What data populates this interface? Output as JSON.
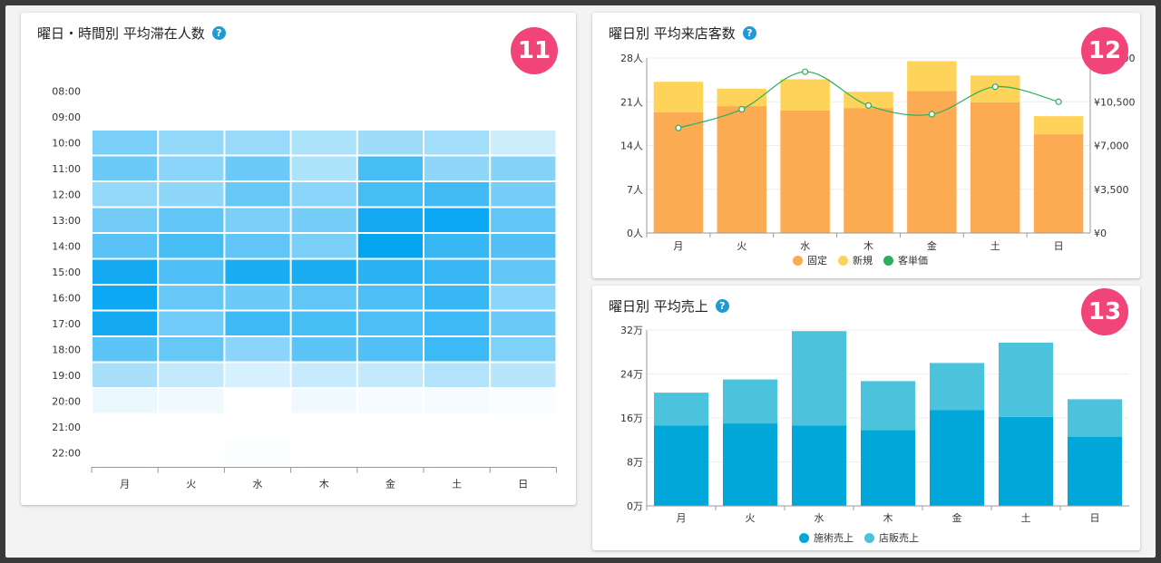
{
  "colors": {
    "help": "#1e9bd7",
    "badge": "#f1457a",
    "fixed": "#fdab53",
    "new": "#fdd35a",
    "unit_price": "#2dae5c",
    "treatment": "#00a7d8",
    "retail": "#4cc3dc",
    "heat_base": "#00a3f2"
  },
  "cards": {
    "heatmap": {
      "title": "曜日・時間別 平均滞在人数",
      "help": "?",
      "badge": "11"
    },
    "visitors": {
      "title": "曜日別 平均来店客数",
      "help": "?",
      "badge": "12"
    },
    "sales": {
      "title": "曜日別 平均売上",
      "help": "?",
      "badge": "13"
    }
  },
  "chart_data": [
    {
      "id": "heatmap",
      "type": "heatmap",
      "x": [
        "月",
        "火",
        "水",
        "木",
        "金",
        "土",
        "日"
      ],
      "y": [
        "08:00",
        "09:00",
        "10:00",
        "11:00",
        "12:00",
        "13:00",
        "14:00",
        "15:00",
        "16:00",
        "17:00",
        "18:00",
        "19:00",
        "20:00",
        "21:00",
        "22:00"
      ],
      "values": [
        [
          0,
          0,
          0,
          0,
          0,
          0,
          0
        ],
        [
          0,
          0,
          0,
          0,
          0,
          0,
          0
        ],
        [
          0.52,
          0.42,
          0.4,
          0.32,
          0.38,
          0.36,
          0.2
        ],
        [
          0.58,
          0.46,
          0.58,
          0.32,
          0.72,
          0.44,
          0.48
        ],
        [
          0.42,
          0.44,
          0.6,
          0.46,
          0.72,
          0.74,
          0.54
        ],
        [
          0.55,
          0.62,
          0.52,
          0.54,
          0.92,
          0.95,
          0.62
        ],
        [
          0.65,
          0.72,
          0.62,
          0.52,
          0.98,
          0.78,
          0.68
        ],
        [
          0.92,
          0.7,
          0.9,
          0.9,
          0.84,
          0.78,
          0.62
        ],
        [
          0.95,
          0.6,
          0.58,
          0.62,
          0.7,
          0.78,
          0.46
        ],
        [
          0.92,
          0.56,
          0.76,
          0.72,
          0.7,
          0.76,
          0.58
        ],
        [
          0.64,
          0.6,
          0.46,
          0.64,
          0.68,
          0.76,
          0.5
        ],
        [
          0.34,
          0.24,
          0.16,
          0.22,
          0.24,
          0.3,
          0.28
        ],
        [
          0.08,
          0.06,
          0,
          0.06,
          0.04,
          0.04,
          0.02
        ],
        [
          0,
          0,
          0,
          0,
          0,
          0,
          0
        ],
        [
          0,
          0,
          0.015,
          0,
          0,
          0,
          0
        ]
      ]
    },
    {
      "id": "visitors",
      "type": "bar",
      "stacked": true,
      "categories": [
        "月",
        "火",
        "水",
        "木",
        "金",
        "土",
        "日"
      ],
      "series": [
        {
          "name": "固定",
          "values": [
            19.3,
            20.3,
            19.6,
            20.0,
            22.7,
            20.9,
            15.8
          ]
        },
        {
          "name": "新規",
          "values": [
            4.9,
            2.8,
            5.0,
            2.6,
            4.8,
            4.3,
            2.9
          ]
        }
      ],
      "line_series": {
        "name": "客単価",
        "values": [
          8400,
          9900,
          12900,
          10200,
          9500,
          11700,
          10500
        ]
      },
      "yticks": [
        "0人",
        "7人",
        "14人",
        "21人",
        "28人"
      ],
      "ylim": [
        0,
        28
      ],
      "y2ticks": [
        "¥0",
        "¥3,500",
        "¥7,000",
        "¥10,500",
        "¥14,000"
      ],
      "y2lim": [
        0,
        14000
      ]
    },
    {
      "id": "sales",
      "type": "bar",
      "stacked": true,
      "categories": [
        "月",
        "火",
        "水",
        "木",
        "金",
        "土",
        "日"
      ],
      "series": [
        {
          "name": "施術売上",
          "values": [
            14.6,
            15.0,
            14.6,
            13.8,
            17.4,
            16.2,
            12.6
          ]
        },
        {
          "name": "店販売上",
          "values": [
            6.0,
            8.0,
            17.2,
            8.9,
            8.6,
            13.5,
            6.8
          ]
        }
      ],
      "yticks": [
        "0万",
        "8万",
        "16万",
        "24万",
        "32万"
      ],
      "ylim": [
        0,
        32
      ]
    }
  ]
}
